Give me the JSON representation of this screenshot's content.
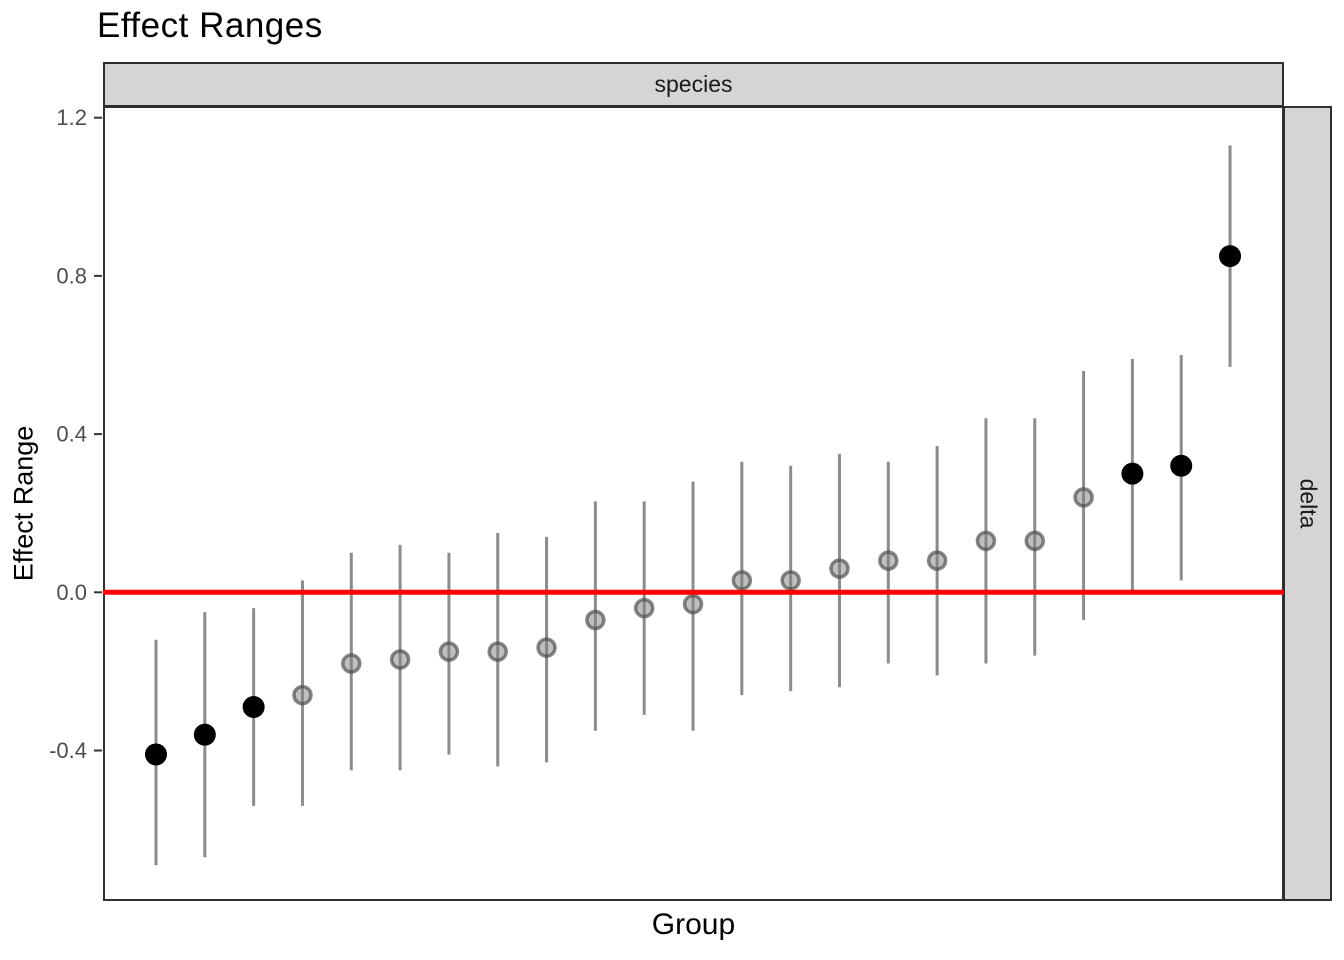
{
  "chart_data": {
    "type": "scatter",
    "subtype": "pointrange",
    "title": "Effect Ranges",
    "xlabel": "Group",
    "ylabel": "Effect Range",
    "facets": {
      "top": "species",
      "right": "delta"
    },
    "legend": "none",
    "grid": false,
    "x_tick_labels_visible": false,
    "y_ticks": [
      "1.2",
      "0.8",
      "0.4",
      "0.0",
      "-0.4"
    ],
    "y_tick_values": [
      1.2,
      0.8,
      0.4,
      0.0,
      -0.4
    ],
    "ylim": [
      -0.78,
      1.23
    ],
    "reference_line": {
      "y": 0.0,
      "color": "#FF0000"
    },
    "colors": {
      "significant_point": "#000000",
      "nonsignificant_fill": "rgba(128,128,128,0.50)",
      "nonsignificant_stroke": "rgba(70,70,70,0.65)",
      "range_bar": "#8C8C8C",
      "panel_border": "#2F2F2F",
      "strip_bg": "#D5D5D5",
      "tick_label": "#4D4D4D",
      "tick_mark": "#333333"
    },
    "points": [
      {
        "estimate": -0.41,
        "lower": -0.69,
        "upper": -0.12,
        "significant": true
      },
      {
        "estimate": -0.36,
        "lower": -0.67,
        "upper": -0.05,
        "significant": true
      },
      {
        "estimate": -0.29,
        "lower": -0.54,
        "upper": -0.04,
        "significant": true
      },
      {
        "estimate": -0.26,
        "lower": -0.54,
        "upper": 0.03,
        "significant": false
      },
      {
        "estimate": -0.18,
        "lower": -0.45,
        "upper": 0.1,
        "significant": false
      },
      {
        "estimate": -0.17,
        "lower": -0.45,
        "upper": 0.12,
        "significant": false
      },
      {
        "estimate": -0.15,
        "lower": -0.41,
        "upper": 0.1,
        "significant": false
      },
      {
        "estimate": -0.15,
        "lower": -0.44,
        "upper": 0.15,
        "significant": false
      },
      {
        "estimate": -0.14,
        "lower": -0.43,
        "upper": 0.14,
        "significant": false
      },
      {
        "estimate": -0.07,
        "lower": -0.35,
        "upper": 0.23,
        "significant": false
      },
      {
        "estimate": -0.04,
        "lower": -0.31,
        "upper": 0.23,
        "significant": false
      },
      {
        "estimate": -0.03,
        "lower": -0.35,
        "upper": 0.28,
        "significant": false
      },
      {
        "estimate": 0.03,
        "lower": -0.26,
        "upper": 0.33,
        "significant": false
      },
      {
        "estimate": 0.03,
        "lower": -0.25,
        "upper": 0.32,
        "significant": false
      },
      {
        "estimate": 0.06,
        "lower": -0.24,
        "upper": 0.35,
        "significant": false
      },
      {
        "estimate": 0.08,
        "lower": -0.18,
        "upper": 0.33,
        "significant": false
      },
      {
        "estimate": 0.08,
        "lower": -0.21,
        "upper": 0.37,
        "significant": false
      },
      {
        "estimate": 0.13,
        "lower": -0.18,
        "upper": 0.44,
        "significant": false
      },
      {
        "estimate": 0.13,
        "lower": -0.16,
        "upper": 0.44,
        "significant": false
      },
      {
        "estimate": 0.24,
        "lower": -0.07,
        "upper": 0.56,
        "significant": false
      },
      {
        "estimate": 0.3,
        "lower": 0.0,
        "upper": 0.59,
        "significant": true
      },
      {
        "estimate": 0.32,
        "lower": 0.03,
        "upper": 0.6,
        "significant": true
      },
      {
        "estimate": 0.85,
        "lower": 0.57,
        "upper": 1.13,
        "significant": true
      }
    ]
  }
}
